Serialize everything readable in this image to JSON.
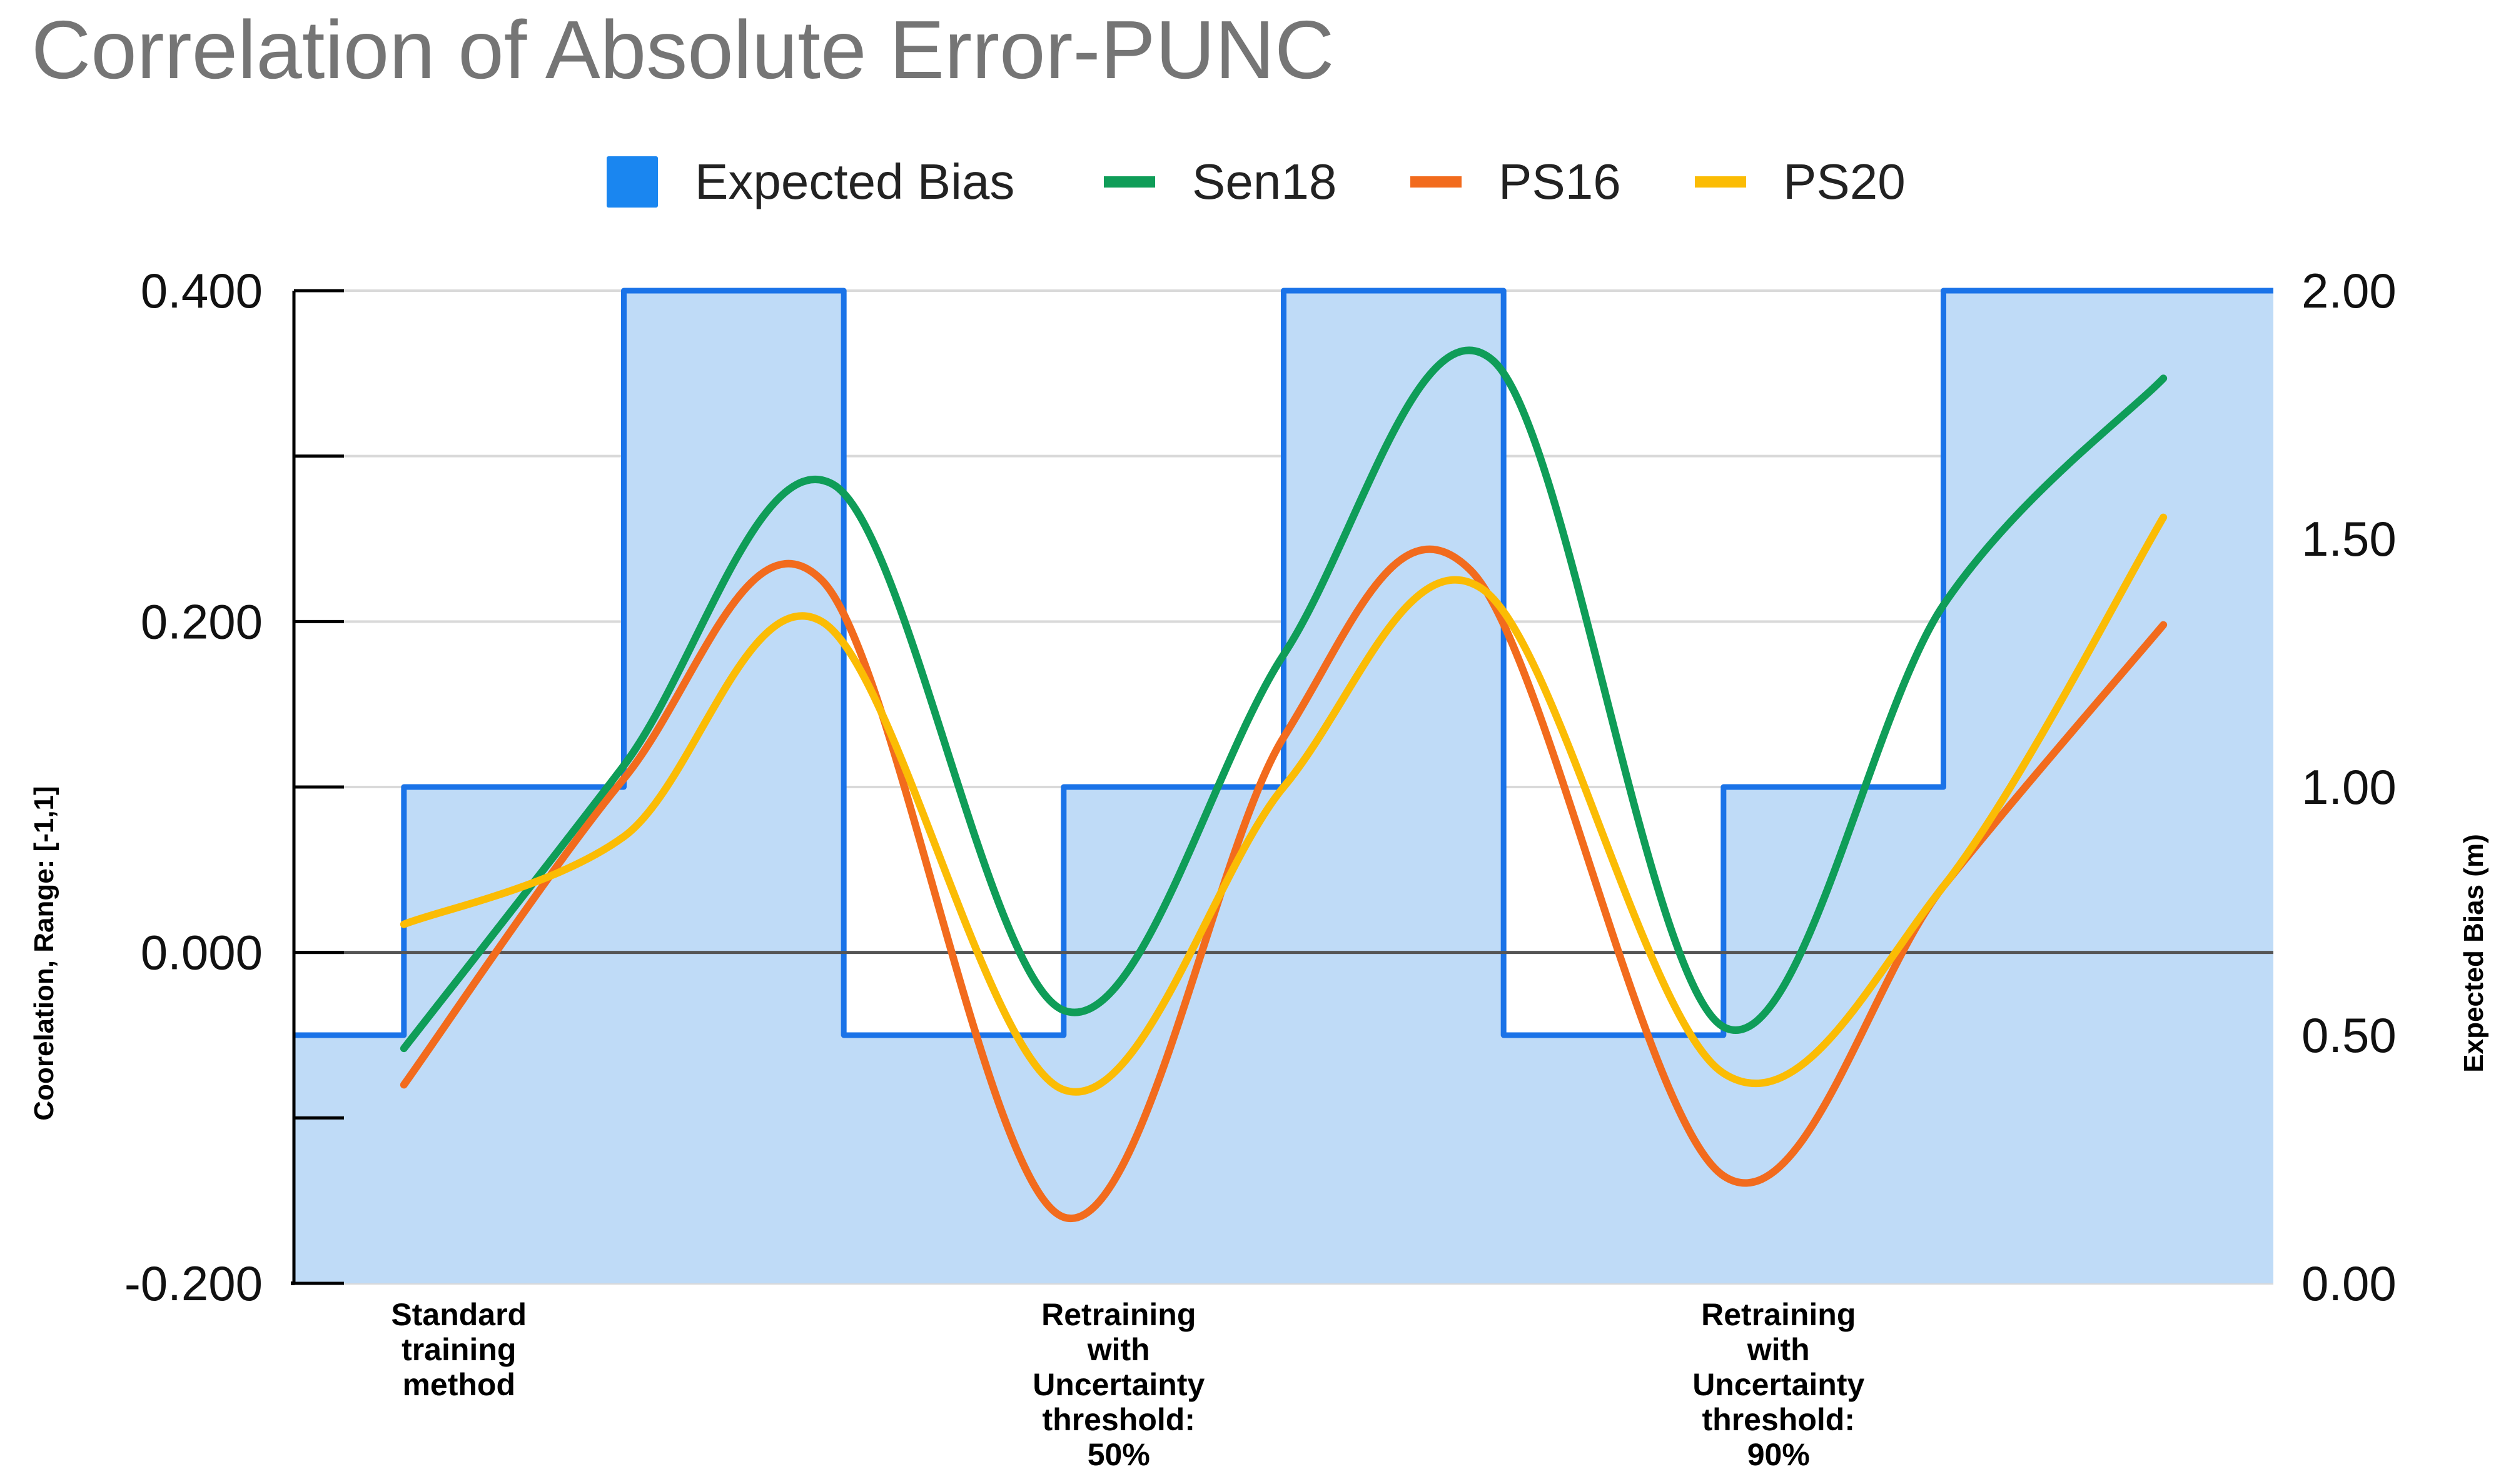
{
  "chart_data": {
    "type": "line",
    "title": "Correlation of Absolute Error-PUNC",
    "ylabel": "Coorelation, Range: [-1,1]",
    "y2label": "Expected Bias (m)",
    "ylim": [
      -0.2,
      0.4
    ],
    "y2lim": [
      0,
      2
    ],
    "yticks": [
      "0.400",
      "0.200",
      "0.000",
      "-0.200"
    ],
    "y2ticks": [
      "2.00",
      "1.50",
      "1.00",
      "0.50",
      "0.00"
    ],
    "grid": true,
    "legend_position": "top",
    "categories": [
      "Standard training method",
      "Retraining with Uncertainty threshold: 50%",
      "Retraining with Uncertainty threshold: 90%"
    ],
    "category_lines": [
      [
        "Standard",
        "training",
        "method"
      ],
      [
        "Retraining",
        "with",
        "Uncertainty",
        "threshold:",
        "50%"
      ],
      [
        "Retraining",
        "with",
        "Uncertainty",
        "threshold:",
        "90%"
      ]
    ],
    "x": [
      0,
      1,
      2,
      3,
      4,
      5,
      6,
      7,
      8,
      9,
      10,
      11,
      12,
      13,
      14,
      15,
      16,
      17
    ],
    "x_max": 18,
    "category_x": [
      1.5,
      7.5,
      13.5
    ],
    "series": [
      {
        "name": "Expected Bias",
        "kind": "step-area",
        "axis": "right",
        "color": "#1a73e8",
        "fill": "#bfdbf7",
        "values": [
          0.5,
          1.0,
          1.0,
          2.0,
          2.0,
          0.5,
          0.5,
          1.0,
          1.0,
          2.0,
          2.0,
          0.5,
          0.5,
          1.0,
          1.0,
          2.0,
          2.0,
          2.0
        ]
      },
      {
        "name": "Sen18",
        "kind": "line",
        "axis": "left",
        "color": "#0f9d58",
        "points": [
          [
            1,
            -0.058
          ],
          [
            3,
            0.113
          ],
          [
            4.9,
            0.283
          ],
          [
            7,
            -0.035
          ],
          [
            9,
            0.18
          ],
          [
            10.9,
            0.358
          ],
          [
            13,
            -0.045
          ],
          [
            15,
            0.21
          ],
          [
            17,
            0.347
          ]
        ]
      },
      {
        "name": "PS16",
        "kind": "line",
        "axis": "left",
        "color": "#f26b1d",
        "points": [
          [
            1,
            -0.08
          ],
          [
            3,
            0.105
          ],
          [
            4.8,
            0.225
          ],
          [
            7,
            -0.16
          ],
          [
            9,
            0.13
          ],
          [
            10.7,
            0.231
          ],
          [
            13,
            -0.135
          ],
          [
            15,
            0.04
          ],
          [
            17,
            0.198
          ]
        ]
      },
      {
        "name": "PS20",
        "kind": "line",
        "axis": "left",
        "color": "#fbbc04",
        "points": [
          [
            1,
            0.017
          ],
          [
            3,
            0.07
          ],
          [
            4.8,
            0.2
          ],
          [
            7,
            -0.083
          ],
          [
            9,
            0.1
          ],
          [
            10.8,
            0.22
          ],
          [
            13,
            -0.073
          ],
          [
            15,
            0.04
          ],
          [
            17,
            0.263
          ]
        ]
      }
    ]
  }
}
